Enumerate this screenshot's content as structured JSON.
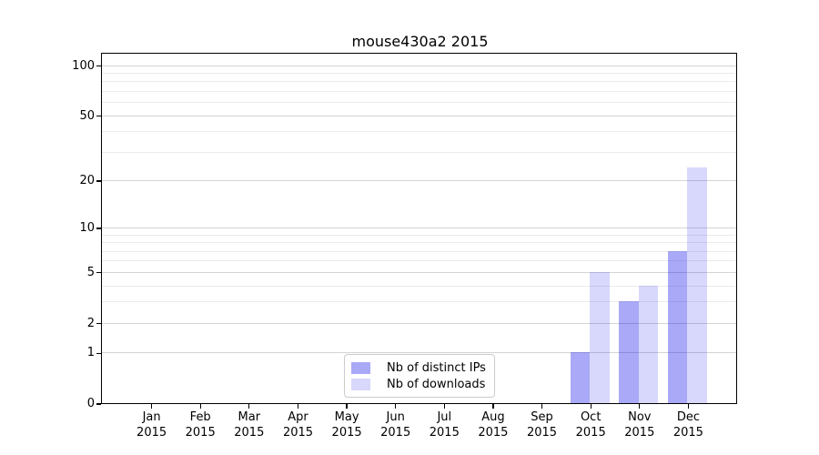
{
  "title": "mouse430a2 2015",
  "chart_data": {
    "type": "bar",
    "title": "mouse430a2 2015",
    "categories": [
      "Jan",
      "Feb",
      "Mar",
      "Apr",
      "May",
      "Jun",
      "Jul",
      "Aug",
      "Sep",
      "Oct",
      "Nov",
      "Dec"
    ],
    "x_year_label": "2015",
    "series": [
      {
        "name": "Nb of distinct IPs",
        "color": "rgba(10,10,235,0.35)",
        "values": [
          0,
          0,
          0,
          0,
          0,
          0,
          0,
          0,
          0,
          1,
          3,
          7
        ]
      },
      {
        "name": "Nb of downloads",
        "color": "rgba(10,10,235,0.16)",
        "values": [
          0,
          0,
          0,
          0,
          0,
          0,
          0,
          0,
          0,
          5,
          4,
          24
        ]
      }
    ],
    "y_scale": "log1p",
    "ylim": [
      0,
      117
    ],
    "y_ticks": [
      0,
      1,
      2,
      5,
      10,
      20,
      50,
      100
    ],
    "y_minor_ticks": [
      3,
      4,
      6,
      7,
      8,
      9,
      30,
      40,
      60,
      70,
      80,
      90
    ],
    "grid": "horizontal",
    "legend_position": "lower center",
    "colors": {
      "major_gridline": "#d4d4d4",
      "minor_gridline": "#ebebeb",
      "axis": "#000000"
    }
  }
}
